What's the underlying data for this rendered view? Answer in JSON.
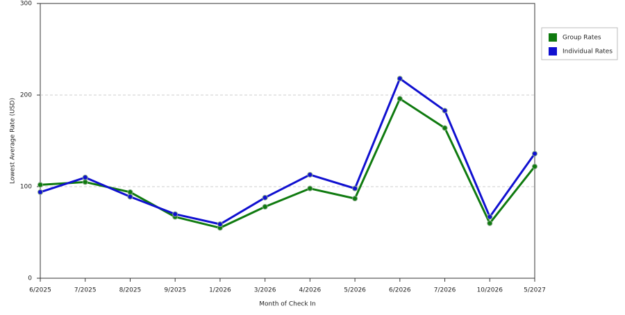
{
  "chart_data": {
    "type": "line",
    "x_label": "Month of Check In",
    "y_label": "Lowest Average Rate (USD)",
    "categories": [
      "6/2025",
      "7/2025",
      "8/2025",
      "9/2025",
      "1/2026",
      "3/2026",
      "4/2026",
      "5/2026",
      "6/2026",
      "7/2026",
      "10/2026",
      "5/2027"
    ],
    "series": [
      {
        "name": "Group Rates",
        "color": "#0f7a0f",
        "values": [
          102,
          105,
          94,
          67,
          55,
          78,
          98,
          87,
          196,
          164,
          60,
          122
        ]
      },
      {
        "name": "Individual Rates",
        "color": "#1010d0",
        "values": [
          94,
          110,
          89,
          70,
          59,
          88,
          113,
          98,
          218,
          183,
          67,
          136
        ]
      }
    ],
    "ylim": [
      0,
      300
    ],
    "yticks": [
      0,
      100,
      200,
      300
    ],
    "grid": true,
    "legend": "right"
  }
}
